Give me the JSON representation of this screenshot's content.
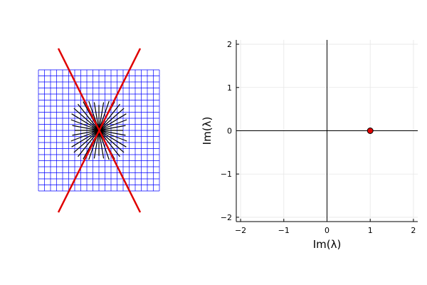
{
  "chart_data": [
    {
      "type": "scatter",
      "panel": "left",
      "description": "Blue square grid with black radial spokes and two red crossing lines",
      "colors": {
        "grid": "#0000ff",
        "spokes": "#000000",
        "lines": "#e00000"
      },
      "grid": {
        "divisions": 20
      },
      "spokes": {
        "count": 36
      },
      "axes_visible": false
    },
    {
      "type": "scatter",
      "panel": "right",
      "xlabel": "Im(λ)",
      "ylabel": "Im(λ)",
      "xlim": [
        -2.1,
        2.1
      ],
      "ylim": [
        -2.1,
        2.1
      ],
      "xticks": [
        -2,
        -1,
        0,
        1,
        2
      ],
      "yticks": [
        -2,
        -1,
        0,
        1,
        2
      ],
      "xtick_labels": [
        "−2",
        "−1",
        "0",
        "1",
        "2"
      ],
      "ytick_labels": [
        "−2",
        "−1",
        "0",
        "1",
        "2"
      ],
      "grid": true,
      "zero_lines": true,
      "points": [
        {
          "x": 1,
          "y": 0,
          "color": "#e00000"
        }
      ]
    }
  ]
}
